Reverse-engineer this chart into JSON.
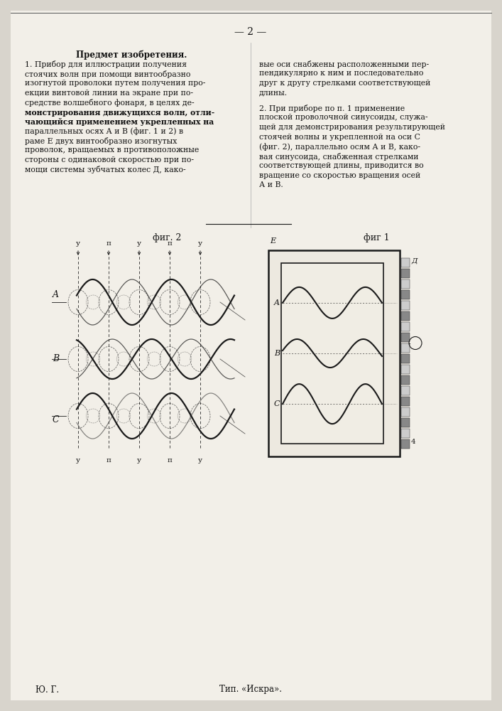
{
  "bg_color": "#d8d4cc",
  "page_color": "#f2efe8",
  "title_page_num": "— 2 —",
  "col1_header": "Предмет изобретения.",
  "footer_left": "Ю. Г.",
  "footer_center": "Тип. «Искра».",
  "fig2_label": "фиг 2",
  "fig1_label": "фиг 1",
  "line_color": "#1a1a1a",
  "text_color": "#111111"
}
